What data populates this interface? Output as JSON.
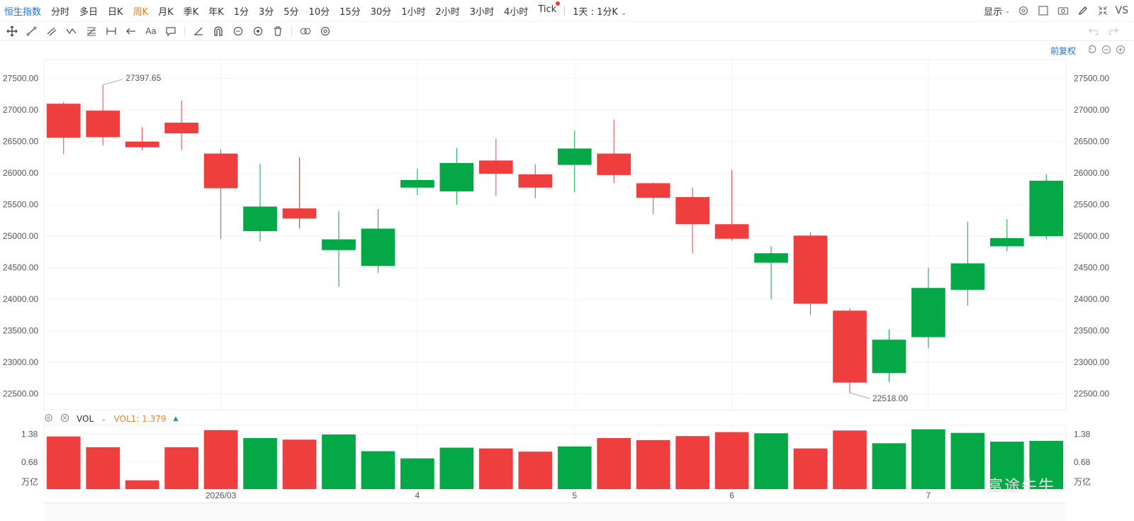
{
  "topbar": {
    "index_label": "恒生指数",
    "timeframes": [
      "分时",
      "多日",
      "日K",
      "周K",
      "月K",
      "季K",
      "年K",
      "1分",
      "3分",
      "5分",
      "10分",
      "15分",
      "30分",
      "1小时",
      "2小时",
      "3小时",
      "4小时",
      "Tick"
    ],
    "active_timeframe": "周K",
    "combo_label": "1天 : 1分K",
    "display_label": "显示",
    "vs_label": "VS"
  },
  "toolbar": {
    "text_tool_label": "Aa",
    "icons": [
      "move-icon",
      "line-tool-icon",
      "channel-tool-icon",
      "wave-tool-icon",
      "fib-tool-icon",
      "measure-tool-icon",
      "arrow-tool-icon",
      "text-tool-icon",
      "comment-icon",
      "angle-icon",
      "magnet-icon",
      "lock-icon",
      "eye-icon",
      "trash-icon",
      "link-icon",
      "settings-icon"
    ]
  },
  "adjust": {
    "label": "前复权"
  },
  "volume": {
    "name": "VOL",
    "label": "VOL1:",
    "value": "1.379",
    "unit": "万亿"
  },
  "watermark": "富途牛牛",
  "colors": {
    "up": "#ef3e3e",
    "down": "#04a846"
  },
  "chart_data": {
    "type": "candlestick",
    "y_ticks": [
      "27500.00",
      "27000.00",
      "26500.00",
      "26000.00",
      "25500.00",
      "25000.00",
      "24500.00",
      "24000.00",
      "23500.00",
      "23000.00",
      "22500.00"
    ],
    "ylim": [
      22250,
      27800
    ],
    "x_labels": [
      {
        "label": "2026/03",
        "index": 4.5
      },
      {
        "label": "4",
        "index": 9.5
      },
      {
        "label": "5",
        "index": 13.5
      },
      {
        "label": "6",
        "index": 17.5
      },
      {
        "label": "7",
        "index": 22.5
      }
    ],
    "max_annotation": {
      "label": "27397.65",
      "value": 27397.65,
      "index": 1
    },
    "min_annotation": {
      "label": "22518.00",
      "value": 22518.0,
      "index": 20
    },
    "candles": [
      {
        "open": 27100,
        "close": 26560,
        "high": 27130,
        "low": 26300,
        "color": "up"
      },
      {
        "open": 26990,
        "close": 26570,
        "high": 27397.65,
        "low": 26440,
        "color": "up"
      },
      {
        "open": 26500,
        "close": 26410,
        "high": 26730,
        "low": 26360,
        "color": "up"
      },
      {
        "open": 26800,
        "close": 26630,
        "high": 27150,
        "low": 26370,
        "color": "up"
      },
      {
        "open": 26310,
        "close": 25760,
        "high": 26380,
        "low": 24960,
        "color": "up"
      },
      {
        "open": 25080,
        "close": 25470,
        "high": 26150,
        "low": 24920,
        "color": "down"
      },
      {
        "open": 25440,
        "close": 25280,
        "high": 26250,
        "low": 25120,
        "color": "up"
      },
      {
        "open": 24780,
        "close": 24950,
        "high": 25400,
        "low": 24200,
        "color": "down"
      },
      {
        "open": 24530,
        "close": 25120,
        "high": 25430,
        "low": 24420,
        "color": "down"
      },
      {
        "open": 25770,
        "close": 25890,
        "high": 26070,
        "low": 25650,
        "color": "down"
      },
      {
        "open": 25710,
        "close": 26160,
        "high": 26400,
        "low": 25500,
        "color": "down"
      },
      {
        "open": 26200,
        "close": 25990,
        "high": 26540,
        "low": 25640,
        "color": "up"
      },
      {
        "open": 25980,
        "close": 25770,
        "high": 26140,
        "low": 25600,
        "color": "up"
      },
      {
        "open": 26130,
        "close": 26390,
        "high": 26670,
        "low": 25700,
        "color": "down"
      },
      {
        "open": 26310,
        "close": 25970,
        "high": 26850,
        "low": 25840,
        "color": "up"
      },
      {
        "open": 25840,
        "close": 25610,
        "high": 25850,
        "low": 25350,
        "color": "up"
      },
      {
        "open": 25620,
        "close": 25190,
        "high": 25770,
        "low": 24730,
        "color": "up"
      },
      {
        "open": 25190,
        "close": 24960,
        "high": 26050,
        "low": 24930,
        "color": "up"
      },
      {
        "open": 24580,
        "close": 24730,
        "high": 24840,
        "low": 24000,
        "color": "down"
      },
      {
        "open": 25010,
        "close": 23930,
        "high": 25060,
        "low": 23750,
        "color": "up"
      },
      {
        "open": 23820,
        "close": 22680,
        "high": 23860,
        "low": 22518,
        "color": "up"
      },
      {
        "open": 22830,
        "close": 23360,
        "high": 23520,
        "low": 22690,
        "color": "down"
      },
      {
        "open": 23400,
        "close": 24180,
        "high": 24500,
        "low": 23230,
        "color": "down"
      },
      {
        "open": 24150,
        "close": 24570,
        "high": 25230,
        "low": 23900,
        "color": "down"
      },
      {
        "open": 24840,
        "close": 24970,
        "high": 25270,
        "low": 24760,
        "color": "down"
      },
      {
        "open": 25000,
        "close": 25880,
        "high": 25980,
        "low": 24950,
        "color": "down"
      }
    ],
    "volume_ticks": [
      "1.38",
      "0.68"
    ],
    "volume_ylim": [
      0,
      1.6
    ],
    "volumes": [
      1.32,
      1.05,
      0.22,
      1.05,
      1.48,
      1.28,
      1.24,
      1.37,
      0.95,
      0.77,
      1.04,
      1.02,
      0.94,
      1.07,
      1.28,
      1.23,
      1.33,
      1.43,
      1.4,
      1.02,
      1.47,
      1.15,
      1.5,
      1.41,
      1.19,
      1.21
    ]
  }
}
